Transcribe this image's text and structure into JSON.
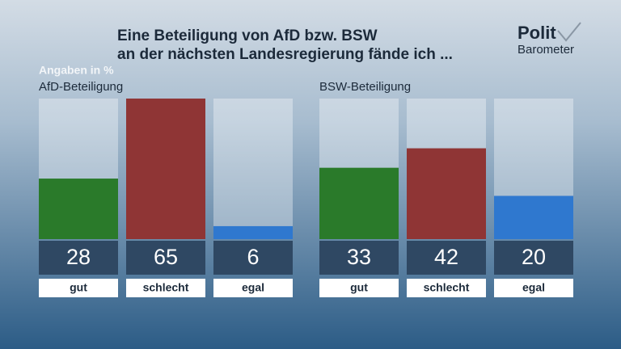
{
  "title_lines": [
    "Eine Beteiligung von AfD bzw. BSW",
    "an der nächsten Landesregierung fände ich ..."
  ],
  "note": "Angaben in %",
  "logo": [
    "Polit",
    "Barometer"
  ],
  "chart_data": [
    {
      "type": "bar",
      "title": "AfD-Beteiligung",
      "categories": [
        "gut",
        "schlecht",
        "egal"
      ],
      "values": [
        28,
        65,
        6
      ],
      "colors": [
        "#2a7a2a",
        "#8f3535",
        "#2f78cf"
      ]
    },
    {
      "type": "bar",
      "title": "BSW-Beteiligung",
      "categories": [
        "gut",
        "schlecht",
        "egal"
      ],
      "values": [
        33,
        42,
        20
      ],
      "colors": [
        "#2a7a2a",
        "#8f3535",
        "#2f78cf"
      ]
    }
  ]
}
